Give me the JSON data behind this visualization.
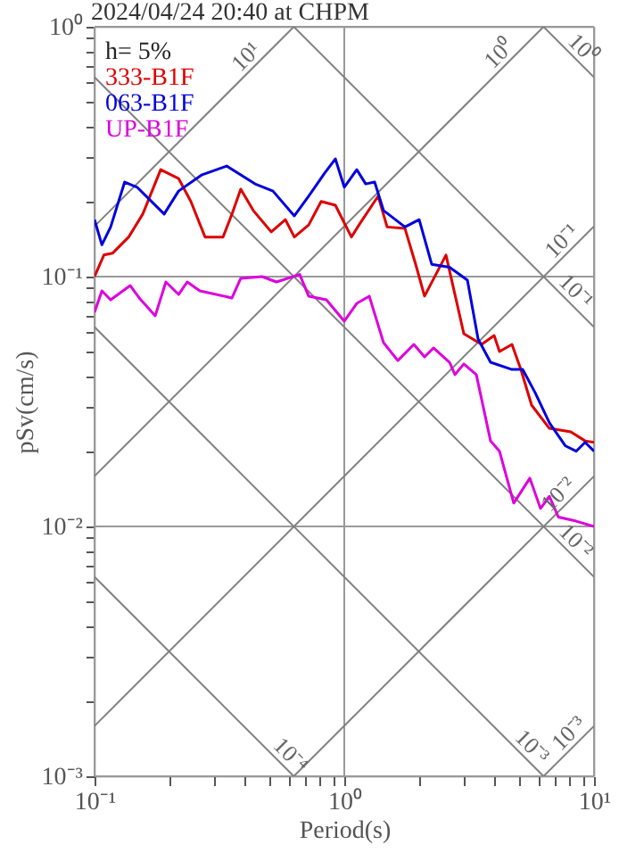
{
  "chart_data": {
    "type": "line",
    "title": "2024/04/24 20:40 at CHPM",
    "xlabel": "Period(s)",
    "ylabel": "pSv(cm/s)",
    "log": "xy",
    "grid": true,
    "legend": "top left",
    "line_style": "solid",
    "marker": "none",
    "xlim": [
      0.1,
      10
    ],
    "ylim": [
      0.001,
      1
    ],
    "xticks": [
      {
        "value": 0.1,
        "label": "10⁻¹"
      },
      {
        "value": 0.2,
        "label": null
      },
      {
        "value": 0.3,
        "label": null
      },
      {
        "value": 0.4,
        "label": null
      },
      {
        "value": 0.5,
        "label": null
      },
      {
        "value": 0.6,
        "label": null
      },
      {
        "value": 0.7,
        "label": null
      },
      {
        "value": 0.8,
        "label": null
      },
      {
        "value": 0.9,
        "label": null
      },
      {
        "value": 1,
        "label": "10⁰"
      },
      {
        "value": 2,
        "label": null
      },
      {
        "value": 3,
        "label": null
      },
      {
        "value": 4,
        "label": null
      },
      {
        "value": 5,
        "label": null
      },
      {
        "value": 6,
        "label": null
      },
      {
        "value": 7,
        "label": null
      },
      {
        "value": 8,
        "label": null
      },
      {
        "value": 9,
        "label": null
      },
      {
        "value": 10,
        "label": "10¹"
      }
    ],
    "yticks": [
      {
        "value": 0.001,
        "label": "10⁻³"
      },
      {
        "value": 0.002,
        "label": null
      },
      {
        "value": 0.003,
        "label": null
      },
      {
        "value": 0.004,
        "label": null
      },
      {
        "value": 0.005,
        "label": null
      },
      {
        "value": 0.006,
        "label": null
      },
      {
        "value": 0.007,
        "label": null
      },
      {
        "value": 0.008,
        "label": null
      },
      {
        "value": 0.009,
        "label": null
      },
      {
        "value": 0.01,
        "label": "10⁻²"
      },
      {
        "value": 0.02,
        "label": null
      },
      {
        "value": 0.03,
        "label": null
      },
      {
        "value": 0.04,
        "label": null
      },
      {
        "value": 0.05,
        "label": null
      },
      {
        "value": 0.06,
        "label": null
      },
      {
        "value": 0.07,
        "label": null
      },
      {
        "value": 0.08,
        "label": null
      },
      {
        "value": 0.09,
        "label": null
      },
      {
        "value": 0.1,
        "label": "10⁻¹"
      },
      {
        "value": 0.2,
        "label": null
      },
      {
        "value": 0.3,
        "label": null
      },
      {
        "value": 0.4,
        "label": null
      },
      {
        "value": 0.5,
        "label": null
      },
      {
        "value": 0.6,
        "label": null
      },
      {
        "value": 0.7,
        "label": null
      },
      {
        "value": 0.8,
        "label": null
      },
      {
        "value": 0.9,
        "label": null
      },
      {
        "value": 1,
        "label": "10⁰"
      }
    ],
    "series": [
      {
        "color": "#808080",
        "x": [
          0.1,
          0.628
        ],
        "values": [
          0.159,
          1
        ]
      },
      {
        "color": "#808080",
        "x": [
          0.1,
          6.28
        ],
        "values": [
          0.0159,
          1
        ]
      },
      {
        "color": "#808080",
        "x": [
          0.1,
          10
        ],
        "values": [
          0.00159,
          0.159
        ]
      },
      {
        "color": "#808080",
        "x": [
          0.628,
          10
        ],
        "values": [
          0.001,
          0.0159
        ]
      },
      {
        "color": "#808080",
        "x": [
          6.28,
          10
        ],
        "values": [
          0.001,
          0.00159
        ]
      },
      {
        "color": "#808080",
        "x": [
          6.28,
          10
        ],
        "values": [
          1,
          0.628
        ]
      },
      {
        "color": "#808080",
        "x": [
          0.628,
          10
        ],
        "values": [
          1,
          0.0628
        ]
      },
      {
        "color": "#808080",
        "x": [
          0.1,
          10
        ],
        "values": [
          0.628,
          0.00628
        ]
      },
      {
        "color": "#808080",
        "x": [
          0.1,
          6.28
        ],
        "values": [
          0.0628,
          0.001
        ]
      },
      {
        "color": "#808080",
        "x": [
          0.1,
          0.628
        ],
        "values": [
          0.00628,
          0.001
        ]
      },
      {
        "name": "333-B1F",
        "color": "#dd0000",
        "x": [
          0.1,
          0.109,
          0.118,
          0.137,
          0.156,
          0.184,
          0.217,
          0.243,
          0.277,
          0.327,
          0.355,
          0.385,
          0.432,
          0.51,
          0.581,
          0.631,
          0.72,
          0.808,
          0.921,
          1.068,
          1.159,
          1.367,
          1.484,
          1.749,
          1.931,
          2.096,
          2.554,
          3.01,
          3.548,
          3.981,
          4.183,
          4.692,
          5.094,
          5.623,
          6.628,
          8.074,
          9.211,
          10
        ],
        "values": [
          0.1,
          0.122,
          0.124,
          0.144,
          0.178,
          0.268,
          0.247,
          0.2,
          0.144,
          0.144,
          0.178,
          0.224,
          0.184,
          0.151,
          0.169,
          0.144,
          0.161,
          0.2,
          0.193,
          0.144,
          0.164,
          0.21,
          0.158,
          0.156,
          0.112,
          0.0835,
          0.122,
          0.0591,
          0.0535,
          0.0581,
          0.0501,
          0.0535,
          0.0425,
          0.0306,
          0.0247,
          0.0239,
          0.022,
          0.0217
        ]
      },
      {
        "name": "063-B1F",
        "color": "#0000dd",
        "x": [
          0.1,
          0.107,
          0.116,
          0.132,
          0.148,
          0.19,
          0.217,
          0.268,
          0.338,
          0.439,
          0.518,
          0.631,
          0.72,
          0.835,
          0.921,
          1.0,
          1.122,
          1.218,
          1.323,
          1.436,
          1.749,
          1.995,
          2.239,
          2.639,
          3.112,
          3.434,
          3.852,
          4.692,
          5.179,
          5.812,
          6.628,
          7.687,
          8.483,
          9.211,
          10
        ],
        "values": [
          0.169,
          0.134,
          0.158,
          0.239,
          0.228,
          0.178,
          0.22,
          0.255,
          0.277,
          0.235,
          0.22,
          0.175,
          0.21,
          0.26,
          0.296,
          0.228,
          0.268,
          0.235,
          0.239,
          0.184,
          0.158,
          0.169,
          0.112,
          0.109,
          0.0968,
          0.0562,
          0.0454,
          0.0425,
          0.0425,
          0.0343,
          0.026,
          0.021,
          0.02,
          0.0217,
          0.02
        ]
      },
      {
        "name": "UP-B1F",
        "color": "#dd00dd",
        "x": [
          0.1,
          0.107,
          0.116,
          0.139,
          0.151,
          0.175,
          0.193,
          0.217,
          0.235,
          0.264,
          0.355,
          0.385,
          0.469,
          0.535,
          0.663,
          0.72,
          0.848,
          1.0,
          1.122,
          1.259,
          1.436,
          1.638,
          1.899,
          2.096,
          2.276,
          2.639,
          2.774,
          3.01,
          3.378,
          3.852,
          4.183,
          4.77,
          5.534,
          6.105,
          6.628,
          7.197,
          8.483,
          10
        ],
        "values": [
          0.072,
          0.0877,
          0.0807,
          0.0921,
          0.0821,
          0.0697,
          0.0952,
          0.0848,
          0.0952,
          0.0877,
          0.0821,
          0.0984,
          0.1,
          0.0952,
          0.102,
          0.0835,
          0.0807,
          0.0663,
          0.0781,
          0.0835,
          0.0544,
          0.0461,
          0.0535,
          0.0477,
          0.0518,
          0.0454,
          0.0405,
          0.0447,
          0.0405,
          0.022,
          0.02,
          0.0124,
          0.0156,
          0.0118,
          0.0132,
          0.0109,
          0.0105,
          0.01
        ]
      }
    ],
    "annotations": [
      "h= 5%",
      {
        "text": "10¹",
        "x": 0.439,
        "y": 0.699
      },
      {
        "text": "10⁰",
        "x": 4.54,
        "y": 0.723
      },
      {
        "text": "10⁰",
        "x": 8.35,
        "y": 0.752
      },
      {
        "text": "10⁻¹",
        "x": 8.07,
        "y": 0.128
      },
      {
        "text": "10⁻¹",
        "x": 7.8,
        "y": 0.0805
      },
      {
        "text": "10⁻²",
        "x": 7.8,
        "y": 0.0124
      },
      {
        "text": "10⁻²",
        "x": 7.8,
        "y": 0.00805
      },
      {
        "text": "10⁻³",
        "x": 8.6,
        "y": 0.00137
      },
      {
        "text": "10⁻³",
        "x": 5.2,
        "y": 0.00121
      },
      {
        "text": "10⁻⁴",
        "x": 0.562,
        "y": 0.00112
      }
    ]
  }
}
